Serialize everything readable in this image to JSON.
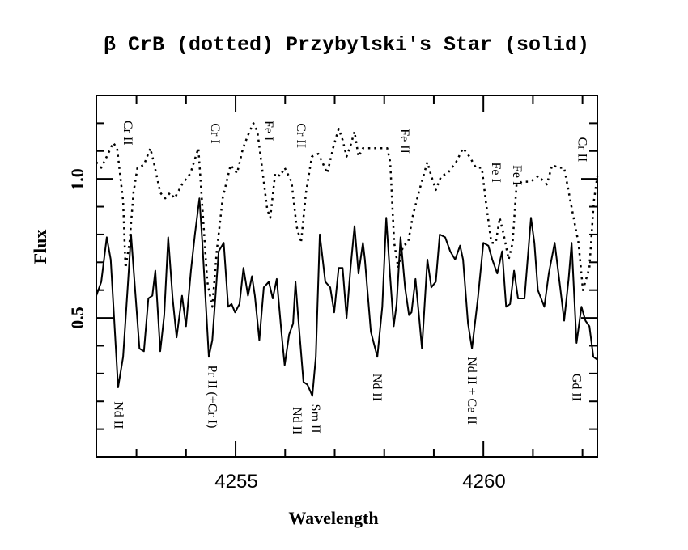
{
  "chart_data": {
    "type": "line",
    "title": "β CrB (dotted) Przybylski's Star (solid)",
    "xlabel": "Wavelength",
    "ylabel": "Flux",
    "xlim": [
      4252.19,
      4262.3
    ],
    "ylim": [
      0.0,
      1.3
    ],
    "x_major_ticks": [
      4255,
      4260
    ],
    "x_tick_labels": [
      "4255",
      "4260"
    ],
    "x_minor_step": 1,
    "y_major_ticks": [
      0.5,
      1.0
    ],
    "y_tick_labels": [
      "0.5",
      "1.0"
    ],
    "y_minor_step": 0.1,
    "grid": false,
    "series": [
      {
        "name": "Przybylski's Star",
        "style": "solid",
        "color": "#000000",
        "x": [
          4252.19,
          4252.29,
          4252.4,
          4252.48,
          4252.63,
          4252.73,
          4252.83,
          4252.89,
          4252.94,
          4253.06,
          4253.15,
          4253.24,
          4253.32,
          4253.38,
          4253.48,
          4253.56,
          4253.64,
          4253.73,
          4253.81,
          4253.92,
          4254.0,
          4254.1,
          4254.18,
          4254.27,
          4254.33,
          4254.46,
          4254.53,
          4254.66,
          4254.76,
          4254.85,
          4254.92,
          4254.99,
          4255.08,
          4255.16,
          4255.25,
          4255.33,
          4255.39,
          4255.48,
          4255.57,
          4255.67,
          4255.75,
          4255.83,
          4255.93,
          4255.99,
          4256.08,
          4256.16,
          4256.21,
          4256.26,
          4256.37,
          4256.45,
          4256.55,
          4256.62,
          4256.7,
          4256.81,
          4256.91,
          4256.99,
          4257.08,
          4257.16,
          4257.24,
          4257.32,
          4257.4,
          4257.48,
          4257.57,
          4257.61,
          4257.73,
          4257.86,
          4257.96,
          4258.04,
          4258.11,
          4258.19,
          4258.25,
          4258.33,
          4258.42,
          4258.5,
          4258.55,
          4258.63,
          4258.71,
          4258.76,
          4258.87,
          4258.95,
          4259.04,
          4259.12,
          4259.23,
          4259.33,
          4259.43,
          4259.53,
          4259.59,
          4259.69,
          4259.77,
          4259.89,
          4260.0,
          4260.1,
          4260.18,
          4260.28,
          4260.38,
          4260.46,
          4260.54,
          4260.62,
          4260.7,
          4260.83,
          4260.96,
          4261.03,
          4261.1,
          4261.23,
          4261.32,
          4261.44,
          4261.55,
          4261.63,
          4261.72,
          4261.78,
          4261.88,
          4261.98,
          4262.06,
          4262.14,
          4262.22,
          4262.3
        ],
        "y": [
          0.58,
          0.63,
          0.79,
          0.71,
          0.25,
          0.36,
          0.63,
          0.8,
          0.68,
          0.39,
          0.38,
          0.57,
          0.58,
          0.67,
          0.38,
          0.51,
          0.79,
          0.57,
          0.43,
          0.58,
          0.47,
          0.67,
          0.8,
          0.93,
          0.77,
          0.36,
          0.42,
          0.74,
          0.77,
          0.54,
          0.55,
          0.52,
          0.55,
          0.68,
          0.58,
          0.65,
          0.58,
          0.42,
          0.61,
          0.63,
          0.57,
          0.64,
          0.44,
          0.33,
          0.44,
          0.48,
          0.63,
          0.51,
          0.27,
          0.26,
          0.22,
          0.36,
          0.8,
          0.63,
          0.61,
          0.52,
          0.68,
          0.68,
          0.5,
          0.68,
          0.83,
          0.66,
          0.77,
          0.71,
          0.45,
          0.36,
          0.54,
          0.86,
          0.67,
          0.47,
          0.55,
          0.79,
          0.61,
          0.51,
          0.52,
          0.64,
          0.49,
          0.39,
          0.71,
          0.61,
          0.63,
          0.8,
          0.79,
          0.74,
          0.71,
          0.76,
          0.71,
          0.48,
          0.39,
          0.57,
          0.77,
          0.76,
          0.71,
          0.66,
          0.74,
          0.54,
          0.55,
          0.67,
          0.57,
          0.57,
          0.86,
          0.77,
          0.6,
          0.54,
          0.66,
          0.77,
          0.61,
          0.49,
          0.64,
          0.77,
          0.41,
          0.54,
          0.49,
          0.47,
          0.36,
          0.35
        ]
      },
      {
        "name": "β CrB",
        "style": "dotted",
        "color": "#000000",
        "x": [
          4252.19,
          4252.29,
          4252.4,
          4252.53,
          4252.61,
          4252.73,
          4252.78,
          4252.86,
          4252.94,
          4253.02,
          4253.15,
          4253.28,
          4253.35,
          4253.48,
          4253.58,
          4253.68,
          4253.77,
          4253.92,
          4254.09,
          4254.25,
          4254.33,
          4254.43,
          4254.53,
          4254.62,
          4254.74,
          4254.9,
          4255.03,
          4255.15,
          4255.28,
          4255.36,
          4255.44,
          4255.52,
          4255.64,
          4255.7,
          4255.8,
          4255.9,
          4255.99,
          4256.13,
          4256.23,
          4256.32,
          4256.42,
          4256.54,
          4256.67,
          4256.75,
          4256.85,
          4256.98,
          4257.08,
          4257.16,
          4257.24,
          4257.32,
          4257.4,
          4257.48,
          4257.57,
          4257.7,
          4257.86,
          4258.06,
          4258.12,
          4258.2,
          4258.28,
          4258.38,
          4258.48,
          4258.58,
          4258.71,
          4258.87,
          4258.95,
          4259.04,
          4259.15,
          4259.28,
          4259.45,
          4259.59,
          4259.72,
          4259.85,
          4259.97,
          4260.05,
          4260.16,
          4260.25,
          4260.33,
          4260.41,
          4260.51,
          4260.59,
          4260.67,
          4260.78,
          4260.95,
          4261.11,
          4261.28,
          4261.39,
          4261.52,
          4261.63,
          4261.81,
          4261.92,
          4262.01,
          4262.14,
          4262.23,
          4262.3
        ],
        "y": [
          1.06,
          1.04,
          1.08,
          1.13,
          1.11,
          0.92,
          0.68,
          0.77,
          0.95,
          1.04,
          1.05,
          1.11,
          1.06,
          0.95,
          0.93,
          0.95,
          0.93,
          0.98,
          1.02,
          1.11,
          0.9,
          0.63,
          0.54,
          0.74,
          0.93,
          1.05,
          1.02,
          1.11,
          1.17,
          1.2,
          1.17,
          1.06,
          0.89,
          0.86,
          1.02,
          1.01,
          1.04,
          0.99,
          0.83,
          0.77,
          0.95,
          1.08,
          1.09,
          1.06,
          1.02,
          1.12,
          1.18,
          1.14,
          1.08,
          1.12,
          1.17,
          1.08,
          1.11,
          1.11,
          1.11,
          1.11,
          1.06,
          0.77,
          0.68,
          0.76,
          0.77,
          0.87,
          0.96,
          1.06,
          1.01,
          0.96,
          1.01,
          1.02,
          1.06,
          1.11,
          1.08,
          1.04,
          1.04,
          0.92,
          0.77,
          0.77,
          0.86,
          0.8,
          0.71,
          0.77,
          0.98,
          0.99,
          0.99,
          1.01,
          0.98,
          1.05,
          1.04,
          1.04,
          0.87,
          0.77,
          0.6,
          0.68,
          0.92,
          1.01
        ]
      }
    ],
    "annotations": [
      {
        "text": "Cr II",
        "x": 4252.83,
        "y": 1.21
      },
      {
        "text": "Cr I",
        "x": 4254.59,
        "y": 1.2
      },
      {
        "text": "Fe I",
        "x": 4255.67,
        "y": 1.21
      },
      {
        "text": "Cr II",
        "x": 4256.32,
        "y": 1.2
      },
      {
        "text": "Fe II",
        "x": 4258.41,
        "y": 1.18
      },
      {
        "text": "Fe I",
        "x": 4260.26,
        "y": 1.06
      },
      {
        "text": "Fe I",
        "x": 4260.68,
        "y": 1.05
      },
      {
        "text": "Cr II",
        "x": 4262.0,
        "y": 1.15
      },
      {
        "text": "Nd II",
        "x": 4252.64,
        "y": 0.2
      },
      {
        "text": "Pr II (+Cr I)",
        "x": 4254.53,
        "y": 0.33
      },
      {
        "text": "Nd II",
        "x": 4256.24,
        "y": 0.18
      },
      {
        "text": "Sm II",
        "x": 4256.62,
        "y": 0.19
      },
      {
        "text": "Nd II",
        "x": 4257.86,
        "y": 0.3
      },
      {
        "text": "Nd II + Ce II",
        "x": 4259.77,
        "y": 0.36
      },
      {
        "text": "Gd II",
        "x": 4261.88,
        "y": 0.3
      }
    ]
  }
}
